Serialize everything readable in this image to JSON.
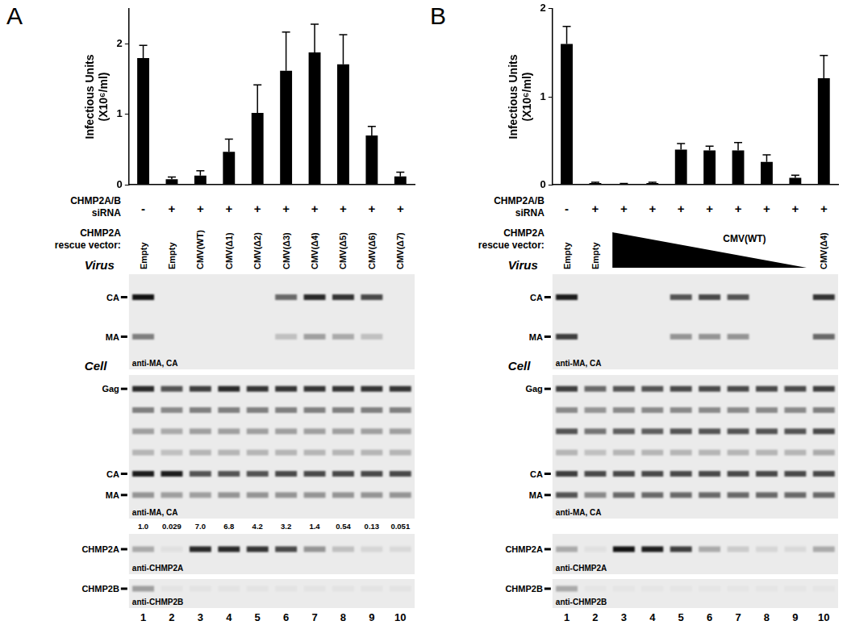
{
  "chart_data": [
    {
      "type": "bar",
      "ylabel": [
        "Infectious Units",
        "(X10⁶/ml)"
      ],
      "categories": [
        "1",
        "2",
        "3",
        "4",
        "5",
        "6",
        "7",
        "8",
        "9",
        "10"
      ],
      "values": [
        1.8,
        0.08,
        0.13,
        0.47,
        1.02,
        1.62,
        1.88,
        1.71,
        0.7,
        0.12
      ],
      "errors": [
        0.18,
        0.03,
        0.07,
        0.18,
        0.4,
        0.55,
        0.4,
        0.42,
        0.13,
        0.06
      ],
      "color": "#000000",
      "ylim": [
        0,
        2.5
      ],
      "yticks": [
        0,
        1,
        2
      ],
      "grid": false,
      "tick_labels": "y"
    },
    {
      "type": "bar",
      "ylabel": [
        "Infectious Units",
        "(X10⁶/ml)"
      ],
      "categories": [
        "1",
        "2",
        "3",
        "4",
        "5",
        "6",
        "7",
        "8",
        "9",
        "10"
      ],
      "values": [
        1.6,
        0.02,
        0.01,
        0.02,
        0.4,
        0.39,
        0.39,
        0.26,
        0.08,
        1.21
      ],
      "errors": [
        0.2,
        0.01,
        0.005,
        0.01,
        0.07,
        0.05,
        0.09,
        0.08,
        0.03,
        0.26
      ],
      "color": "#000000",
      "ylim": [
        0,
        2
      ],
      "yticks": [
        0,
        1,
        2
      ],
      "grid": false,
      "tick_labels": "y"
    }
  ],
  "panels": [
    {
      "label": "A",
      "sirna_label": [
        "CHMP2A/B",
        "siRNA"
      ],
      "sirna": [
        "-",
        "+",
        "+",
        "+",
        "+",
        "+",
        "+",
        "+",
        "+",
        "+"
      ],
      "vector_label": [
        "CHMP2A",
        "rescue vector:"
      ],
      "vectors": [
        "Empty",
        "Empty",
        "CMV(WT)",
        "CMV(Δ1)",
        "CMV(Δ2)",
        "CMV(Δ3)",
        "CMV(Δ4)",
        "CMV(Δ5)",
        "CMV(Δ6)",
        "CMV(Δ7)"
      ],
      "sections": [
        {
          "title": "Virus",
          "blots": [
            {
              "antibody": "anti-MA, CA",
              "bands": [
                {
                  "name": "CA",
                  "intensity": [
                    1.0,
                    0,
                    0,
                    0,
                    0,
                    0.6,
                    0.9,
                    0.85,
                    0.75,
                    0
                  ]
                },
                {
                  "name": "MA",
                  "intensity": [
                    0.5,
                    0,
                    0,
                    0,
                    0,
                    0.2,
                    0.35,
                    0.3,
                    0.2,
                    0
                  ]
                }
              ]
            }
          ]
        },
        {
          "title": "Cell",
          "blots": [
            {
              "antibody": "anti-MA, CA",
              "bands": [
                {
                  "name": "Gag",
                  "intensity": [
                    0.9,
                    0.7,
                    0.8,
                    0.9,
                    0.85,
                    0.85,
                    0.85,
                    0.85,
                    0.85,
                    0.85
                  ]
                },
                {
                  "name": null,
                  "intensity": [
                    0.5,
                    0.45,
                    0.5,
                    0.5,
                    0.5,
                    0.5,
                    0.5,
                    0.5,
                    0.5,
                    0.5
                  ]
                },
                {
                  "name": null,
                  "intensity": [
                    0.35,
                    0.3,
                    0.35,
                    0.35,
                    0.35,
                    0.35,
                    0.35,
                    0.35,
                    0.35,
                    0.35
                  ]
                },
                {
                  "name": null,
                  "intensity": [
                    0.25,
                    0.2,
                    0.25,
                    0.25,
                    0.25,
                    0.25,
                    0.25,
                    0.25,
                    0.25,
                    0.25
                  ]
                },
                {
                  "name": "CA",
                  "intensity": [
                    0.95,
                    0.95,
                    0.7,
                    0.7,
                    0.7,
                    0.75,
                    0.75,
                    0.75,
                    0.75,
                    0.75
                  ]
                },
                {
                  "name": "MA",
                  "intensity": [
                    0.4,
                    0.35,
                    0.35,
                    0.4,
                    0.4,
                    0.4,
                    0.4,
                    0.4,
                    0.4,
                    0.4
                  ]
                }
              ]
            },
            {
              "antibody": "anti-CHMP2A",
              "bands": [
                {
                  "name": "CHMP2A",
                  "intensity": [
                    0.3,
                    0.05,
                    0.9,
                    0.9,
                    0.85,
                    0.75,
                    0.4,
                    0.2,
                    0.1,
                    0.08
                  ]
                }
              ]
            },
            {
              "antibody": "anti-CHMP2B",
              "bands": [
                {
                  "name": "CHMP2B",
                  "intensity": [
                    0.35,
                    0.04,
                    0.04,
                    0.04,
                    0.04,
                    0.04,
                    0.04,
                    0.04,
                    0.04,
                    0.04
                  ]
                }
              ]
            }
          ]
        }
      ],
      "quantification": [
        "1.0",
        "0.029",
        "7.0",
        "6.8",
        "4.2",
        "3.2",
        "1.4",
        "0.54",
        "0.13",
        "0.051"
      ]
    },
    {
      "label": "B",
      "sirna_label": [
        "CHMP2A/B",
        "siRNA"
      ],
      "sirna": [
        "-",
        "+",
        "+",
        "+",
        "+",
        "+",
        "+",
        "+",
        "+",
        "+"
      ],
      "vector_label": [
        "CHMP2A",
        "rescue vector:"
      ],
      "vectors": [
        "Empty",
        "Empty",
        null,
        null,
        null,
        null,
        null,
        null,
        null,
        "CMV(Δ4)"
      ],
      "ramp": {
        "label": "CMV(WT)",
        "lanes": [
          3,
          9
        ]
      },
      "sections": [
        {
          "title": "Virus",
          "blots": [
            {
              "antibody": "anti-MA, CA",
              "bands": [
                {
                  "name": "CA",
                  "intensity": [
                    0.95,
                    0,
                    0,
                    0,
                    0.7,
                    0.75,
                    0.7,
                    0,
                    0,
                    0.85
                  ]
                },
                {
                  "name": "MA",
                  "intensity": [
                    0.8,
                    0,
                    0,
                    0,
                    0.4,
                    0.4,
                    0.4,
                    0,
                    0,
                    0.6
                  ]
                }
              ]
            }
          ]
        },
        {
          "title": "Cell",
          "blots": [
            {
              "antibody": "anti-MA, CA",
              "bands": [
                {
                  "name": "Gag",
                  "intensity": [
                    0.8,
                    0.6,
                    0.7,
                    0.7,
                    0.75,
                    0.75,
                    0.75,
                    0.75,
                    0.75,
                    0.8
                  ]
                },
                {
                  "name": null,
                  "intensity": [
                    0.45,
                    0.4,
                    0.45,
                    0.45,
                    0.45,
                    0.45,
                    0.45,
                    0.45,
                    0.45,
                    0.5
                  ]
                },
                {
                  "name": null,
                  "intensity": [
                    0.7,
                    0.55,
                    0.65,
                    0.65,
                    0.7,
                    0.7,
                    0.7,
                    0.7,
                    0.7,
                    0.75
                  ]
                },
                {
                  "name": null,
                  "intensity": [
                    0.25,
                    0.2,
                    0.25,
                    0.25,
                    0.25,
                    0.25,
                    0.25,
                    0.25,
                    0.25,
                    0.3
                  ]
                },
                {
                  "name": "CA",
                  "intensity": [
                    0.8,
                    0.75,
                    0.75,
                    0.75,
                    0.75,
                    0.75,
                    0.75,
                    0.75,
                    0.75,
                    0.75
                  ]
                },
                {
                  "name": "MA",
                  "intensity": [
                    0.7,
                    0.45,
                    0.6,
                    0.6,
                    0.6,
                    0.6,
                    0.6,
                    0.6,
                    0.6,
                    0.6
                  ]
                }
              ]
            },
            {
              "antibody": "anti-CHMP2A",
              "bands": [
                {
                  "name": "CHMP2A",
                  "intensity": [
                    0.3,
                    0.05,
                    1.0,
                    0.95,
                    0.8,
                    0.3,
                    0.15,
                    0.1,
                    0.08,
                    0.3
                  ]
                }
              ]
            },
            {
              "antibody": "anti-CHMP2B",
              "bands": [
                {
                  "name": "CHMP2B",
                  "intensity": [
                    0.3,
                    0.03,
                    0.03,
                    0.03,
                    0.03,
                    0.03,
                    0.03,
                    0.03,
                    0.03,
                    0.03
                  ]
                }
              ]
            }
          ]
        }
      ]
    }
  ]
}
